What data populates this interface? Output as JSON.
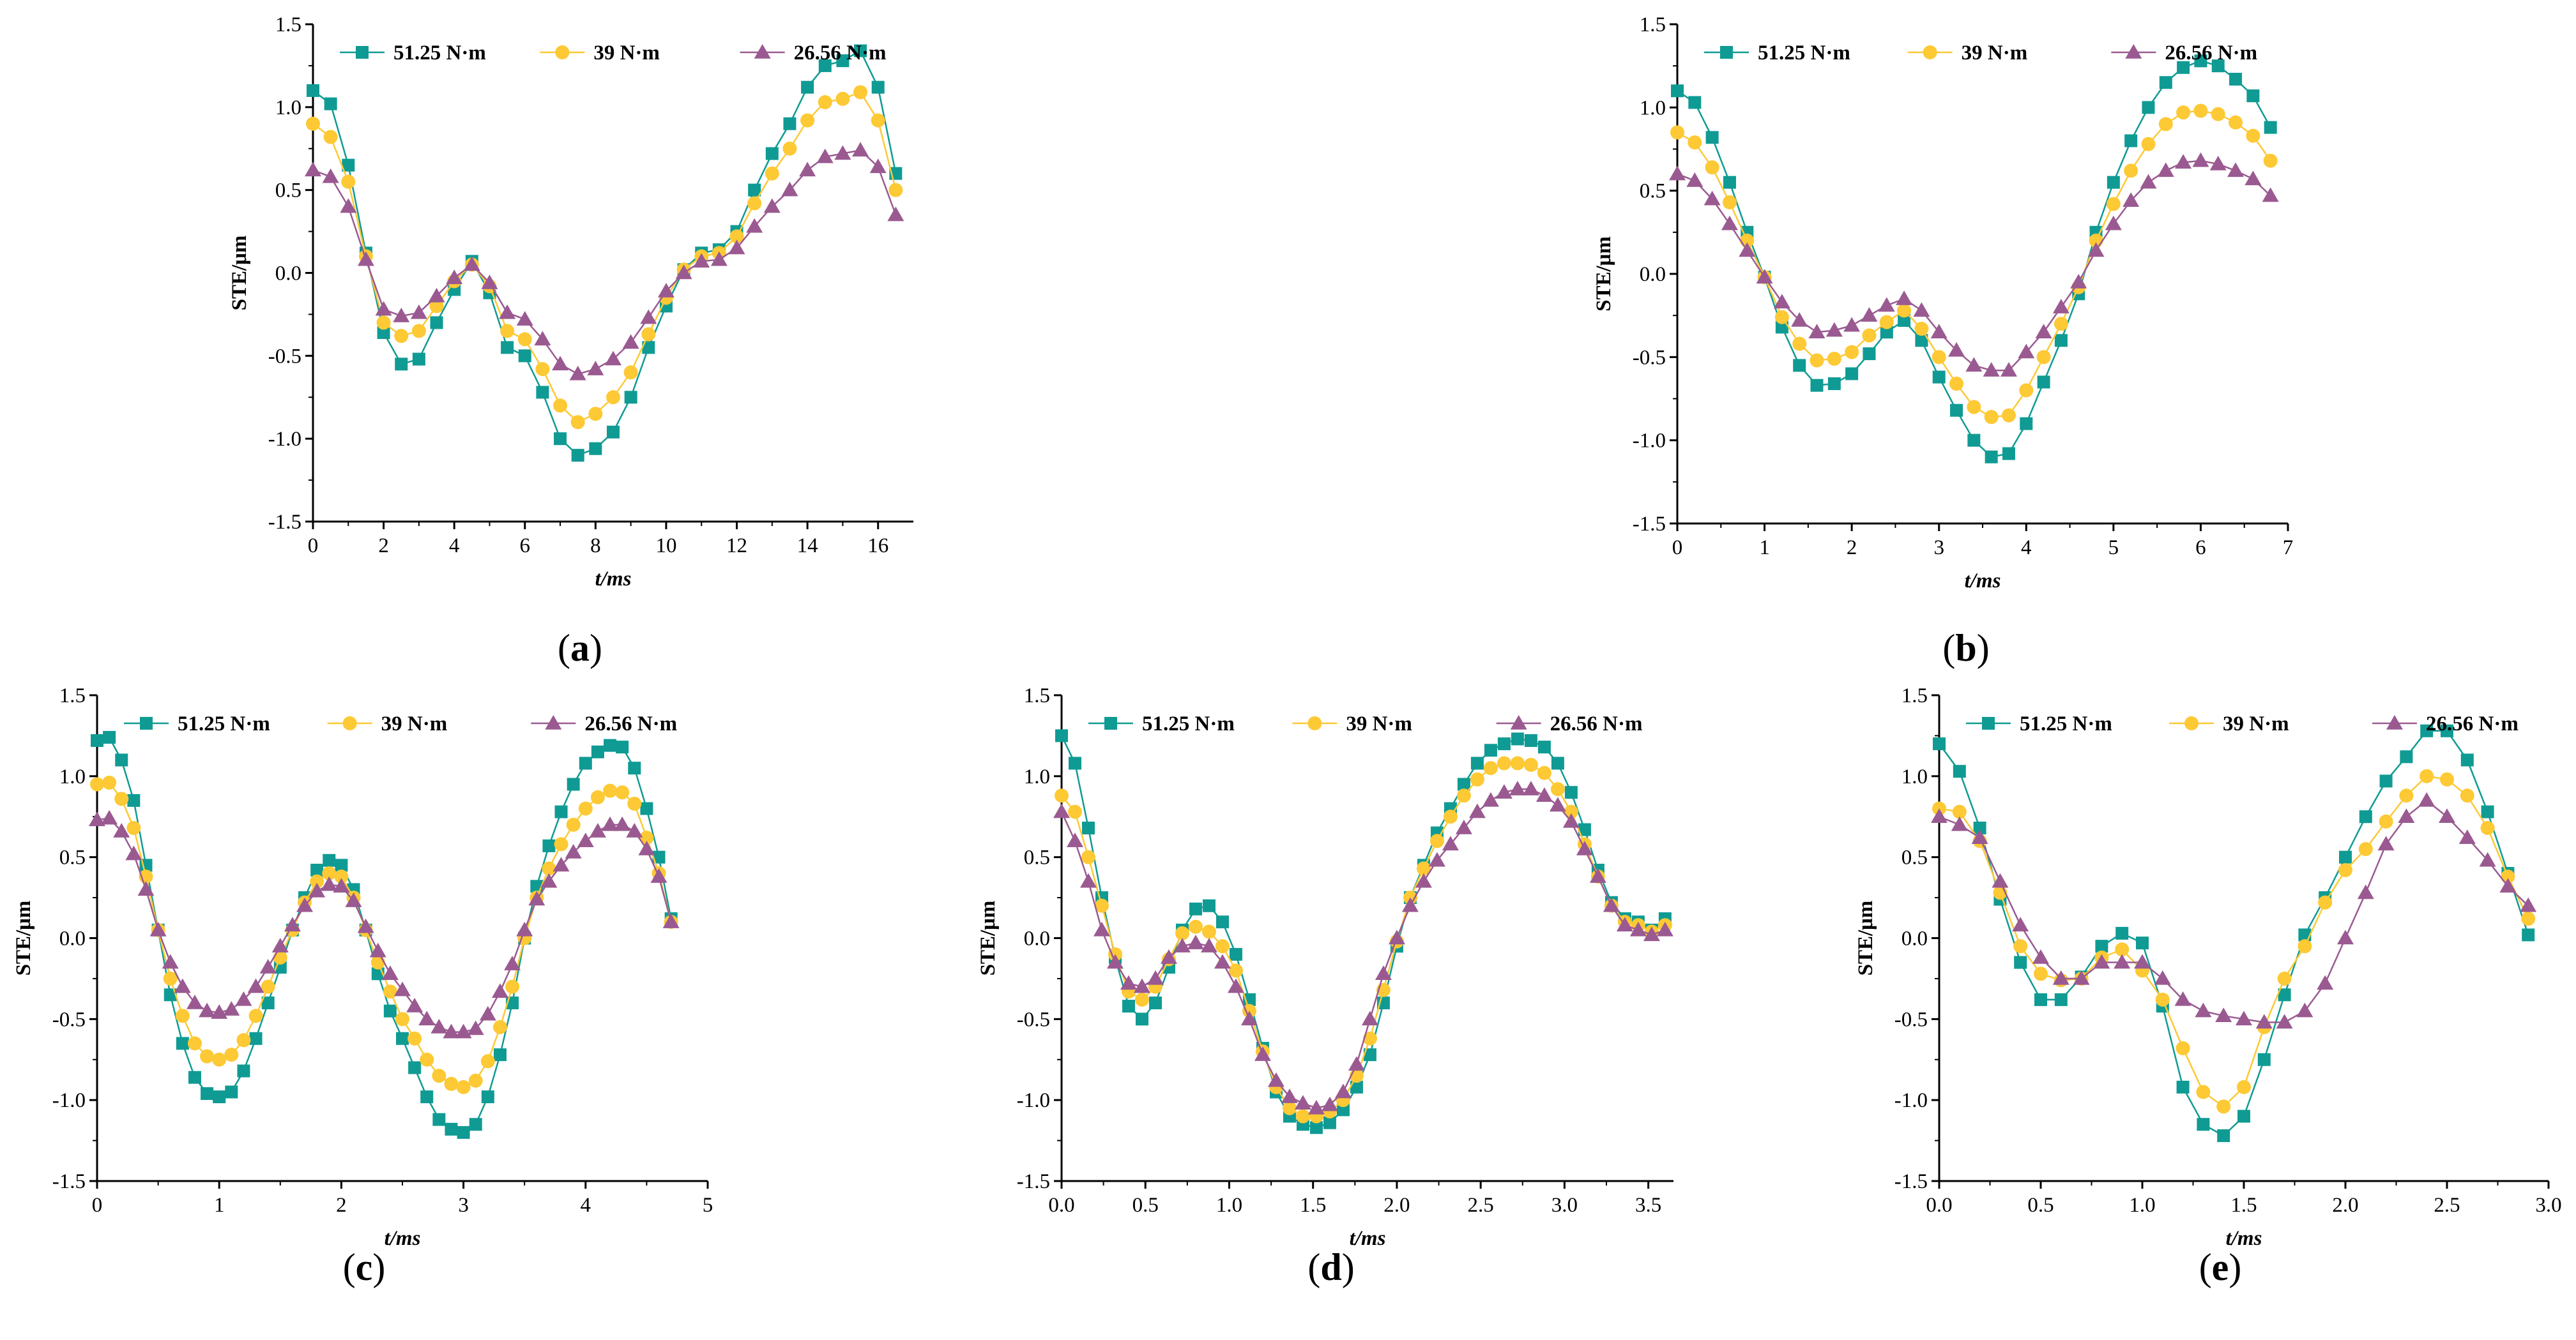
{
  "figure": {
    "series_names": [
      "51.25 N·m",
      "39 N·m",
      "26.56 N·m"
    ],
    "series_colors": [
      "#0f9b93",
      "#fdc934",
      "#9a5a91"
    ],
    "series_markers": [
      "square",
      "circle",
      "triangle"
    ],
    "y_label": "STE/μm",
    "x_label": "t/ms"
  },
  "chart_data": [
    {
      "id": "a",
      "type": "line",
      "caption_open": "(",
      "caption_letter": "a",
      "caption_close": ")",
      "xlabel": "t/ms",
      "ylabel": "STE/μm",
      "xlim": [
        0,
        17
      ],
      "ylim": [
        -1.5,
        1.5
      ],
      "xticks": [
        0,
        2,
        4,
        6,
        8,
        10,
        12,
        14,
        16
      ],
      "xtick_labels": [
        "0",
        "2",
        "4",
        "6",
        "8",
        "10",
        "12",
        "14",
        "16"
      ],
      "yticks": [
        -1.5,
        -1.0,
        -0.5,
        0.0,
        0.5,
        1.0,
        1.5
      ],
      "ytick_labels": [
        "-1.5",
        "-1.0",
        "-0.5",
        "0.0",
        "0.5",
        "1.0",
        "1.5"
      ],
      "legend": [
        "51.25 N·m",
        "39 N·m",
        "26.56 N·m"
      ],
      "x": [
        0,
        0.5,
        1,
        1.5,
        2,
        2.5,
        3,
        3.5,
        4,
        4.5,
        5,
        5.5,
        6,
        6.5,
        7,
        7.5,
        8,
        8.5,
        9,
        9.5,
        10,
        10.5,
        11,
        11.5,
        12,
        12.5,
        13,
        13.5,
        14,
        14.5,
        15,
        15.5,
        16,
        16.5
      ],
      "series": [
        {
          "name": "51.25 N·m",
          "values": [
            1.1,
            1.02,
            0.65,
            0.12,
            -0.36,
            -0.55,
            -0.52,
            -0.3,
            -0.1,
            0.07,
            -0.12,
            -0.45,
            -0.5,
            -0.72,
            -1.0,
            -1.1,
            -1.06,
            -0.96,
            -0.75,
            -0.45,
            -0.2,
            0.02,
            0.12,
            0.14,
            0.25,
            0.5,
            0.72,
            0.9,
            1.12,
            1.25,
            1.28,
            1.34,
            1.12,
            0.6
          ]
        },
        {
          "name": "39 N·m",
          "values": [
            0.9,
            0.82,
            0.55,
            0.1,
            -0.3,
            -0.38,
            -0.35,
            -0.2,
            -0.05,
            0.05,
            -0.08,
            -0.35,
            -0.4,
            -0.58,
            -0.8,
            -0.9,
            -0.85,
            -0.75,
            -0.6,
            -0.37,
            -0.15,
            0.02,
            0.1,
            0.12,
            0.22,
            0.42,
            0.6,
            0.75,
            0.92,
            1.03,
            1.05,
            1.09,
            0.92,
            0.5
          ]
        },
        {
          "name": "26.56 N·m",
          "values": [
            0.62,
            0.58,
            0.4,
            0.08,
            -0.22,
            -0.26,
            -0.24,
            -0.14,
            -0.03,
            0.05,
            -0.06,
            -0.24,
            -0.28,
            -0.4,
            -0.55,
            -0.61,
            -0.58,
            -0.52,
            -0.42,
            -0.27,
            -0.11,
            0.0,
            0.07,
            0.08,
            0.15,
            0.28,
            0.4,
            0.5,
            0.62,
            0.7,
            0.72,
            0.74,
            0.64,
            0.35
          ]
        }
      ]
    },
    {
      "id": "b",
      "type": "line",
      "caption_open": "(",
      "caption_letter": "b",
      "caption_close": ")",
      "xlabel": "t/ms",
      "ylabel": "STE/μm",
      "xlim": [
        0,
        7
      ],
      "ylim": [
        -1.5,
        1.5
      ],
      "xticks": [
        0,
        1,
        2,
        3,
        4,
        5,
        6,
        7
      ],
      "xtick_labels": [
        "0",
        "1",
        "2",
        "3",
        "4",
        "5",
        "6",
        "7"
      ],
      "yticks": [
        -1.5,
        -1.0,
        -0.5,
        0.0,
        0.5,
        1.0,
        1.5
      ],
      "ytick_labels": [
        "-1.5",
        "-1.0",
        "-0.5",
        "0.0",
        "0.5",
        "1.0",
        "1.5"
      ],
      "legend": [
        "51.25 N·m",
        "39 N·m",
        "26.56 N·m"
      ],
      "x": [
        0,
        0.2,
        0.4,
        0.6,
        0.8,
        1.0,
        1.2,
        1.4,
        1.6,
        1.8,
        2.0,
        2.2,
        2.4,
        2.6,
        2.8,
        3.0,
        3.2,
        3.4,
        3.6,
        3.8,
        4.0,
        4.2,
        4.4,
        4.6,
        4.8,
        5.0,
        5.2,
        5.4,
        5.6,
        5.8,
        6.0,
        6.2,
        6.4,
        6.6,
        6.8
      ],
      "series": [
        {
          "name": "51.25 N·m",
          "values": [
            1.1,
            1.03,
            0.82,
            0.55,
            0.25,
            -0.02,
            -0.32,
            -0.55,
            -0.67,
            -0.66,
            -0.6,
            -0.48,
            -0.35,
            -0.28,
            -0.4,
            -0.62,
            -0.82,
            -1.0,
            -1.1,
            -1.08,
            -0.9,
            -0.65,
            -0.4,
            -0.12,
            0.25,
            0.55,
            0.8,
            1.0,
            1.15,
            1.24,
            1.28,
            1.25,
            1.17,
            1.07,
            0.88
          ]
        },
        {
          "name": "39 N·m",
          "values": [
            0.85,
            0.79,
            0.64,
            0.43,
            0.2,
            -0.02,
            -0.26,
            -0.42,
            -0.52,
            -0.51,
            -0.47,
            -0.37,
            -0.29,
            -0.22,
            -0.33,
            -0.5,
            -0.66,
            -0.8,
            -0.86,
            -0.85,
            -0.7,
            -0.5,
            -0.3,
            -0.08,
            0.2,
            0.42,
            0.62,
            0.78,
            0.9,
            0.97,
            0.98,
            0.96,
            0.91,
            0.83,
            0.68
          ]
        },
        {
          "name": "26.56 N·m",
          "values": [
            0.6,
            0.56,
            0.45,
            0.3,
            0.14,
            -0.02,
            -0.17,
            -0.28,
            -0.35,
            -0.34,
            -0.31,
            -0.25,
            -0.19,
            -0.15,
            -0.22,
            -0.35,
            -0.46,
            -0.55,
            -0.58,
            -0.58,
            -0.47,
            -0.35,
            -0.2,
            -0.05,
            0.14,
            0.3,
            0.44,
            0.55,
            0.62,
            0.67,
            0.68,
            0.66,
            0.62,
            0.57,
            0.47
          ]
        }
      ]
    },
    {
      "id": "c",
      "type": "line",
      "caption_open": "(",
      "caption_letter": "c",
      "caption_close": ")",
      "xlabel": "t/ms",
      "ylabel": "STE/μm",
      "xlim": [
        0,
        5
      ],
      "ylim": [
        -1.5,
        1.5
      ],
      "xticks": [
        0,
        1,
        2,
        3,
        4,
        5
      ],
      "xtick_labels": [
        "0",
        "1",
        "2",
        "3",
        "4",
        "5"
      ],
      "yticks": [
        -1.5,
        -1.0,
        -0.5,
        0.0,
        0.5,
        1.0,
        1.5
      ],
      "ytick_labels": [
        "-1.5",
        "-1.0",
        "-0.5",
        "0.0",
        "0.5",
        "1.0",
        "1.5"
      ],
      "legend": [
        "51.25 N·m",
        "39 N·m",
        "26.56 N·m"
      ],
      "x": [
        0,
        0.1,
        0.2,
        0.3,
        0.4,
        0.5,
        0.6,
        0.7,
        0.8,
        0.9,
        1.0,
        1.1,
        1.2,
        1.3,
        1.4,
        1.5,
        1.6,
        1.7,
        1.8,
        1.9,
        2.0,
        2.1,
        2.2,
        2.3,
        2.4,
        2.5,
        2.6,
        2.7,
        2.8,
        2.9,
        3.0,
        3.1,
        3.2,
        3.3,
        3.4,
        3.5,
        3.6,
        3.7,
        3.8,
        3.9,
        4.0,
        4.1,
        4.2,
        4.3,
        4.4,
        4.5,
        4.6,
        4.7
      ],
      "series": [
        {
          "name": "51.25 N·m",
          "values": [
            1.22,
            1.24,
            1.1,
            0.85,
            0.45,
            0.05,
            -0.35,
            -0.65,
            -0.86,
            -0.96,
            -0.98,
            -0.95,
            -0.82,
            -0.62,
            -0.4,
            -0.18,
            0.05,
            0.25,
            0.42,
            0.48,
            0.45,
            0.3,
            0.05,
            -0.22,
            -0.45,
            -0.62,
            -0.8,
            -0.98,
            -1.12,
            -1.18,
            -1.2,
            -1.15,
            -0.98,
            -0.72,
            -0.4,
            0.0,
            0.32,
            0.57,
            0.78,
            0.95,
            1.08,
            1.15,
            1.19,
            1.18,
            1.05,
            0.8,
            0.5,
            0.12
          ]
        },
        {
          "name": "39 N·m",
          "values": [
            0.95,
            0.96,
            0.86,
            0.68,
            0.38,
            0.05,
            -0.25,
            -0.48,
            -0.65,
            -0.73,
            -0.75,
            -0.72,
            -0.63,
            -0.48,
            -0.3,
            -0.12,
            0.05,
            0.22,
            0.35,
            0.4,
            0.38,
            0.25,
            0.05,
            -0.15,
            -0.33,
            -0.5,
            -0.62,
            -0.75,
            -0.85,
            -0.9,
            -0.92,
            -0.88,
            -0.76,
            -0.55,
            -0.3,
            0.0,
            0.25,
            0.43,
            0.58,
            0.7,
            0.8,
            0.87,
            0.91,
            0.9,
            0.83,
            0.62,
            0.4,
            0.1
          ]
        },
        {
          "name": "26.56 N·m",
          "values": [
            0.73,
            0.74,
            0.66,
            0.52,
            0.3,
            0.05,
            -0.15,
            -0.3,
            -0.4,
            -0.45,
            -0.46,
            -0.44,
            -0.38,
            -0.3,
            -0.18,
            -0.05,
            0.08,
            0.2,
            0.29,
            0.33,
            0.32,
            0.23,
            0.07,
            -0.08,
            -0.22,
            -0.32,
            -0.42,
            -0.5,
            -0.55,
            -0.58,
            -0.58,
            -0.56,
            -0.47,
            -0.33,
            -0.16,
            0.05,
            0.24,
            0.35,
            0.45,
            0.53,
            0.6,
            0.66,
            0.7,
            0.7,
            0.66,
            0.55,
            0.38,
            0.1
          ]
        }
      ]
    },
    {
      "id": "d",
      "type": "line",
      "caption_open": "(",
      "caption_letter": "d",
      "caption_close": ")",
      "xlabel": "t/ms",
      "ylabel": "STE/μm",
      "xlim": [
        0,
        3.65
      ],
      "ylim": [
        -1.5,
        1.5
      ],
      "xticks": [
        0,
        0.5,
        1.0,
        1.5,
        2.0,
        2.5,
        3.0,
        3.5
      ],
      "xtick_labels": [
        "0.0",
        "0.5",
        "1.0",
        "1.5",
        "2.0",
        "2.5",
        "3.0",
        "3.5"
      ],
      "yticks": [
        -1.5,
        -1.0,
        -0.5,
        0.0,
        0.5,
        1.0,
        1.5
      ],
      "ytick_labels": [
        "-1.5",
        "-1.0",
        "-0.5",
        "0.0",
        "0.5",
        "1.0",
        "1.5"
      ],
      "legend": [
        "51.25 N·m",
        "39 N·m",
        "26.56 N·m"
      ],
      "x": [
        0,
        0.08,
        0.16,
        0.24,
        0.32,
        0.4,
        0.48,
        0.56,
        0.64,
        0.72,
        0.8,
        0.88,
        0.96,
        1.04,
        1.12,
        1.2,
        1.28,
        1.36,
        1.44,
        1.52,
        1.6,
        1.68,
        1.76,
        1.84,
        1.92,
        2.0,
        2.08,
        2.16,
        2.24,
        2.32,
        2.4,
        2.48,
        2.56,
        2.64,
        2.72,
        2.8,
        2.88,
        2.96,
        3.04,
        3.12,
        3.2,
        3.28,
        3.36,
        3.44,
        3.52,
        3.6
      ],
      "series": [
        {
          "name": "51.25 N·m",
          "values": [
            1.25,
            1.08,
            0.68,
            0.25,
            -0.12,
            -0.42,
            -0.5,
            -0.4,
            -0.18,
            0.05,
            0.18,
            0.2,
            0.1,
            -0.1,
            -0.38,
            -0.68,
            -0.95,
            -1.1,
            -1.15,
            -1.17,
            -1.14,
            -1.06,
            -0.92,
            -0.72,
            -0.4,
            -0.05,
            0.25,
            0.45,
            0.65,
            0.8,
            0.95,
            1.08,
            1.16,
            1.2,
            1.23,
            1.22,
            1.18,
            1.08,
            0.9,
            0.67,
            0.42,
            0.22,
            0.12,
            0.1,
            0.05,
            0.12
          ]
        },
        {
          "name": "39 N·m",
          "values": [
            0.88,
            0.78,
            0.5,
            0.2,
            -0.1,
            -0.33,
            -0.38,
            -0.3,
            -0.13,
            0.03,
            0.07,
            0.04,
            -0.05,
            -0.2,
            -0.45,
            -0.7,
            -0.92,
            -1.05,
            -1.1,
            -1.1,
            -1.07,
            -1.0,
            -0.85,
            -0.62,
            -0.32,
            -0.02,
            0.25,
            0.43,
            0.6,
            0.75,
            0.88,
            0.98,
            1.05,
            1.08,
            1.08,
            1.07,
            1.02,
            0.92,
            0.78,
            0.58,
            0.38,
            0.2,
            0.1,
            0.08,
            0.04,
            0.08
          ]
        },
        {
          "name": "26.56 N·m",
          "values": [
            0.78,
            0.6,
            0.35,
            0.05,
            -0.15,
            -0.28,
            -0.3,
            -0.25,
            -0.12,
            -0.05,
            -0.03,
            -0.05,
            -0.15,
            -0.3,
            -0.5,
            -0.72,
            -0.88,
            -0.98,
            -1.02,
            -1.05,
            -1.03,
            -0.95,
            -0.78,
            -0.5,
            -0.22,
            0.0,
            0.2,
            0.35,
            0.48,
            0.58,
            0.68,
            0.78,
            0.85,
            0.9,
            0.92,
            0.92,
            0.88,
            0.82,
            0.72,
            0.55,
            0.38,
            0.2,
            0.08,
            0.05,
            0.02,
            0.05
          ]
        }
      ]
    },
    {
      "id": "e",
      "type": "line",
      "caption_open": "(",
      "caption_letter": "e",
      "caption_close": ")",
      "xlabel": "t/ms",
      "ylabel": "STE/μm",
      "xlim": [
        0,
        3.0
      ],
      "ylim": [
        -1.5,
        1.5
      ],
      "xticks": [
        0,
        0.5,
        1.0,
        1.5,
        2.0,
        2.5,
        3.0
      ],
      "xtick_labels": [
        "0.0",
        "0.5",
        "1.0",
        "1.5",
        "2.0",
        "2.5",
        "3.0"
      ],
      "yticks": [
        -1.5,
        -1.0,
        -0.5,
        0.0,
        0.5,
        1.0,
        1.5
      ],
      "ytick_labels": [
        "-1.5",
        "-1.0",
        "-0.5",
        "0.0",
        "0.5",
        "1.0",
        "1.5"
      ],
      "legend": [
        "51.25 N·m",
        "39 N·m",
        "26.56 N·m"
      ],
      "x": [
        0,
        0.1,
        0.2,
        0.3,
        0.4,
        0.5,
        0.6,
        0.7,
        0.8,
        0.9,
        1.0,
        1.1,
        1.2,
        1.3,
        1.4,
        1.5,
        1.6,
        1.7,
        1.8,
        1.9,
        2.0,
        2.1,
        2.2,
        2.3,
        2.4,
        2.5,
        2.6,
        2.7,
        2.8,
        2.9
      ],
      "series": [
        {
          "name": "51.25 N·m",
          "values": [
            1.2,
            1.03,
            0.68,
            0.24,
            -0.15,
            -0.38,
            -0.38,
            -0.24,
            -0.05,
            0.03,
            -0.03,
            -0.42,
            -0.92,
            -1.15,
            -1.22,
            -1.1,
            -0.75,
            -0.35,
            0.02,
            0.25,
            0.5,
            0.75,
            0.97,
            1.12,
            1.28,
            1.28,
            1.1,
            0.78,
            0.4,
            0.02
          ]
        },
        {
          "name": "39 N·m",
          "values": [
            0.8,
            0.78,
            0.6,
            0.28,
            -0.05,
            -0.22,
            -0.26,
            -0.25,
            -0.12,
            -0.07,
            -0.2,
            -0.38,
            -0.68,
            -0.95,
            -1.04,
            -0.92,
            -0.55,
            -0.25,
            -0.05,
            0.22,
            0.42,
            0.55,
            0.72,
            0.88,
            1.0,
            0.98,
            0.88,
            0.68,
            0.38,
            0.12
          ]
        },
        {
          "name": "26.56 N·m",
          "values": [
            0.75,
            0.7,
            0.62,
            0.35,
            0.08,
            -0.12,
            -0.25,
            -0.25,
            -0.15,
            -0.15,
            -0.15,
            -0.25,
            -0.38,
            -0.45,
            -0.48,
            -0.5,
            -0.52,
            -0.52,
            -0.45,
            -0.28,
            0.0,
            0.28,
            0.58,
            0.75,
            0.85,
            0.75,
            0.62,
            0.48,
            0.32,
            0.2
          ]
        }
      ]
    }
  ]
}
